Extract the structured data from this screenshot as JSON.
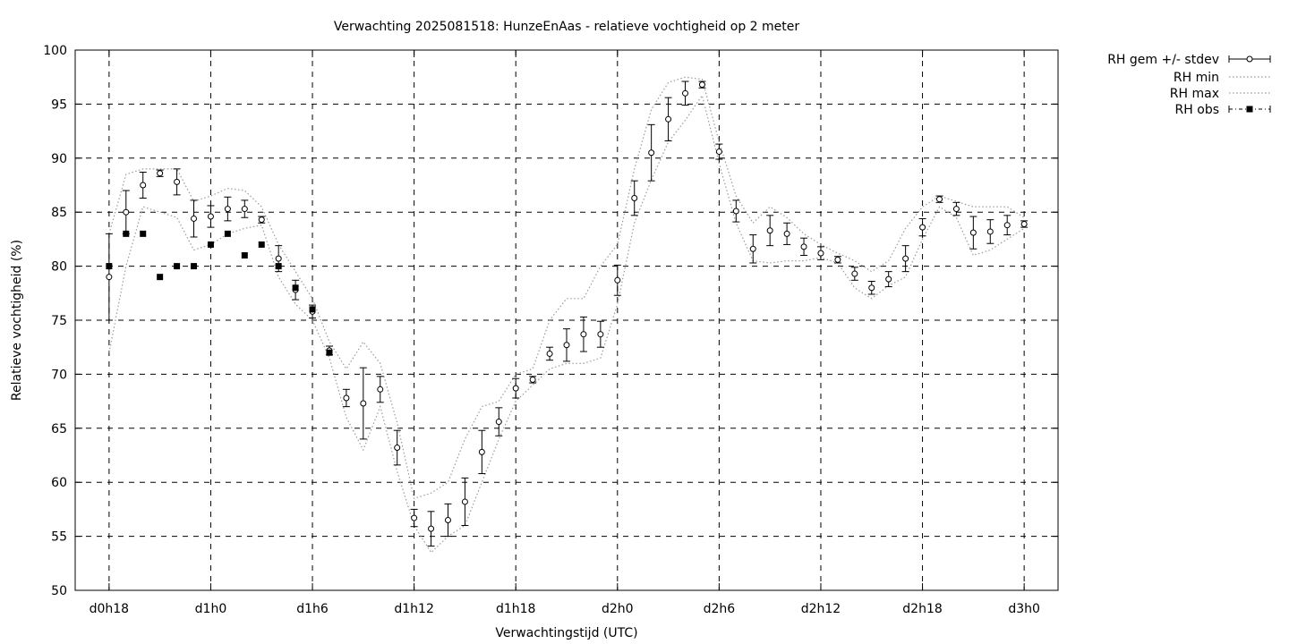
{
  "chart_data": {
    "type": "line",
    "title": "Verwachting 2025081518: HunzeEnAas - relatieve vochtigheid op 2 meter",
    "xlabel": "Verwachtingstijd (UTC)",
    "ylabel": "Relatieve vochtigheid (%)",
    "xlim": [
      -2,
      56
    ],
    "ylim": [
      50,
      100
    ],
    "yticks": [
      50,
      55,
      60,
      65,
      70,
      75,
      80,
      85,
      90,
      95,
      100
    ],
    "xticks": [
      {
        "x": 0,
        "label": "d0h18"
      },
      {
        "x": 6,
        "label": "d1h0"
      },
      {
        "x": 12,
        "label": "d1h6"
      },
      {
        "x": 18,
        "label": "d1h12"
      },
      {
        "x": 24,
        "label": "d1h18"
      },
      {
        "x": 30,
        "label": "d2h0"
      },
      {
        "x": 36,
        "label": "d2h6"
      },
      {
        "x": 42,
        "label": "d2h12"
      },
      {
        "x": 48,
        "label": "d2h18"
      },
      {
        "x": 54,
        "label": "d3h0"
      }
    ],
    "grid": true,
    "legend_position": "outside-right",
    "x_unit": "hours after d0h18",
    "series": [
      {
        "name": "RH gem +/- stdev",
        "style": "points-errorbars",
        "x": [
          0,
          1,
          2,
          3,
          4,
          5,
          6,
          7,
          8,
          9,
          10,
          11,
          12,
          13,
          14,
          15,
          16,
          17,
          18,
          19,
          20,
          21,
          22,
          23,
          24,
          25,
          26,
          27,
          28,
          29,
          30,
          31,
          32,
          33,
          34,
          35,
          36,
          37,
          38,
          39,
          40,
          41,
          42,
          43,
          44,
          45,
          46,
          47,
          48,
          49,
          50,
          51,
          52,
          53,
          54
        ],
        "y": [
          79,
          85,
          87.5,
          88.6,
          87.8,
          84.4,
          84.6,
          85.3,
          85.3,
          84.3,
          80.7,
          77.8,
          75.8,
          72.2,
          67.8,
          67.3,
          68.6,
          63.2,
          56.7,
          55.7,
          56.5,
          58.2,
          62.8,
          65.6,
          68.7,
          69.5,
          71.9,
          72.7,
          73.7,
          73.7,
          78.7,
          86.3,
          90.5,
          93.6,
          96,
          96.8,
          90.6,
          85.1,
          81.6,
          83.3,
          83,
          81.8,
          81.2,
          80.6,
          79.3,
          78,
          78.8,
          80.7,
          83.6,
          86.2,
          85.3,
          83.1,
          83.2,
          83.8,
          83.9
        ],
        "err": [
          4,
          2,
          1.2,
          0.3,
          1.2,
          1.7,
          1,
          1.1,
          0.8,
          0.3,
          1.2,
          0.9,
          0.6,
          0.4,
          0.8,
          3.3,
          1.2,
          1.6,
          0.8,
          1.6,
          1.5,
          2.2,
          2,
          1.3,
          0.9,
          0.3,
          0.6,
          1.5,
          1.6,
          1.2,
          1.4,
          1.6,
          2.6,
          2,
          1.1,
          0.3,
          0.7,
          1,
          1.3,
          1.4,
          1,
          0.8,
          0.6,
          0.3,
          0.6,
          0.6,
          0.7,
          1.2,
          0.8,
          0.3,
          0.6,
          1.5,
          1.1,
          0.9,
          0.3
        ]
      },
      {
        "name": "RH min",
        "style": "dotted",
        "x": [
          0,
          1,
          2,
          3,
          4,
          5,
          6,
          7,
          8,
          9,
          10,
          11,
          12,
          13,
          14,
          15,
          16,
          17,
          18,
          19,
          20,
          21,
          22,
          23,
          24,
          25,
          26,
          27,
          28,
          29,
          30,
          31,
          32,
          33,
          34,
          35,
          36,
          37,
          38,
          39,
          40,
          41,
          42,
          43,
          44,
          45,
          46,
          47,
          48,
          49,
          50,
          51,
          52,
          53,
          54
        ],
        "y": [
          72,
          80,
          85.5,
          85,
          84.5,
          81.5,
          82,
          83,
          83.5,
          83.8,
          79,
          76.5,
          75,
          71.5,
          66,
          63,
          67,
          61,
          56,
          53.5,
          55,
          56,
          60,
          64,
          67.5,
          69,
          70.5,
          71,
          71,
          71.5,
          76.5,
          84,
          88,
          91.5,
          93.5,
          95.8,
          89.5,
          84,
          80.5,
          80.3,
          80.5,
          80.5,
          80.8,
          80.3,
          78,
          77,
          78.2,
          79,
          82.5,
          85.5,
          84.5,
          81,
          81.5,
          82.5,
          83.5
        ]
      },
      {
        "name": "RH max",
        "style": "dotted",
        "x": [
          0,
          1,
          2,
          3,
          4,
          5,
          6,
          7,
          8,
          9,
          10,
          11,
          12,
          13,
          14,
          15,
          16,
          17,
          18,
          19,
          20,
          21,
          22,
          23,
          24,
          25,
          26,
          27,
          28,
          29,
          30,
          31,
          32,
          33,
          34,
          35,
          36,
          37,
          38,
          39,
          40,
          41,
          42,
          43,
          44,
          45,
          46,
          47,
          48,
          49,
          50,
          51,
          52,
          53,
          54
        ],
        "y": [
          83,
          88.5,
          89,
          89,
          89,
          86,
          86.5,
          87.2,
          87,
          85.5,
          82,
          79.5,
          77,
          73,
          70.5,
          73,
          71,
          65.5,
          58.5,
          59,
          60,
          64,
          67,
          67.5,
          70,
          70.5,
          75,
          77,
          77,
          80,
          82,
          89,
          94.5,
          97,
          97.5,
          97.3,
          91.5,
          86.5,
          84,
          85.5,
          84.5,
          83,
          82,
          81.2,
          80.5,
          79.5,
          80.5,
          83.5,
          85.5,
          86.5,
          86,
          85.5,
          85.5,
          85.5,
          84.5
        ]
      },
      {
        "name": "RH obs",
        "style": "filled-squares",
        "x": [
          0,
          1,
          2,
          3,
          4,
          5,
          6,
          7,
          8,
          9,
          10,
          11,
          12,
          13
        ],
        "y": [
          80,
          83,
          83,
          79,
          80,
          80,
          82,
          83,
          81,
          82,
          80,
          78,
          76,
          72
        ]
      }
    ]
  }
}
